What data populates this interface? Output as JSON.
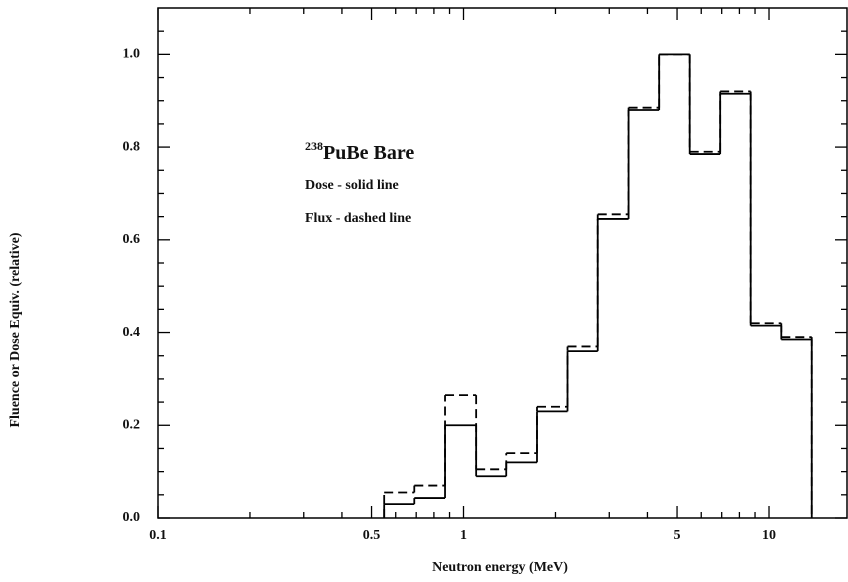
{
  "chart_data": {
    "type": "histogram",
    "title_superscript": "238",
    "title": "PuBe Bare",
    "xlabel": "Neutron energy (MeV)",
    "ylabel": "Fluence or Dose Equiv. (relative)",
    "xscale": "log",
    "bins": [
      0.55,
      0.69,
      0.87,
      1.1,
      1.38,
      1.74,
      2.19,
      2.75,
      3.47,
      4.37,
      5.5,
      6.92,
      8.71,
      10.97,
      13.8
    ],
    "series": [
      {
        "name": "Dose - solid line",
        "color": "#000000",
        "style": "solid",
        "values": [
          0.03,
          0.043,
          0.2,
          0.09,
          0.12,
          0.23,
          0.36,
          0.645,
          0.88,
          1.0,
          0.785,
          0.915,
          0.415,
          0.385
        ]
      },
      {
        "name": "Flux - dashed line",
        "color": "#000000",
        "style": "dashed",
        "values": [
          0.055,
          0.07,
          0.265,
          0.105,
          0.14,
          0.24,
          0.37,
          0.655,
          0.885,
          1.0,
          0.79,
          0.92,
          0.42,
          0.39
        ]
      }
    ],
    "xlim": [
      0.1,
      18
    ],
    "xticks": [
      0.1,
      0.5,
      1,
      5,
      10
    ],
    "xminorticks": [
      0.2,
      0.3,
      0.4,
      0.6,
      0.7,
      0.8,
      0.9,
      2,
      3,
      4,
      6,
      7,
      8,
      9
    ],
    "ylim": [
      0,
      1.1
    ],
    "yticks": [
      {
        "value": 0,
        "label": "0.0"
      },
      0.2,
      0.4,
      0.6,
      0.8,
      {
        "value": 1,
        "label": "1.0"
      }
    ],
    "yminorticks": [
      0.05,
      0.1,
      0.15,
      0.25,
      0.3,
      0.35,
      0.45,
      0.5,
      0.55,
      0.65,
      0.7,
      0.75,
      0.85,
      0.9,
      0.95,
      1.05
    ]
  }
}
